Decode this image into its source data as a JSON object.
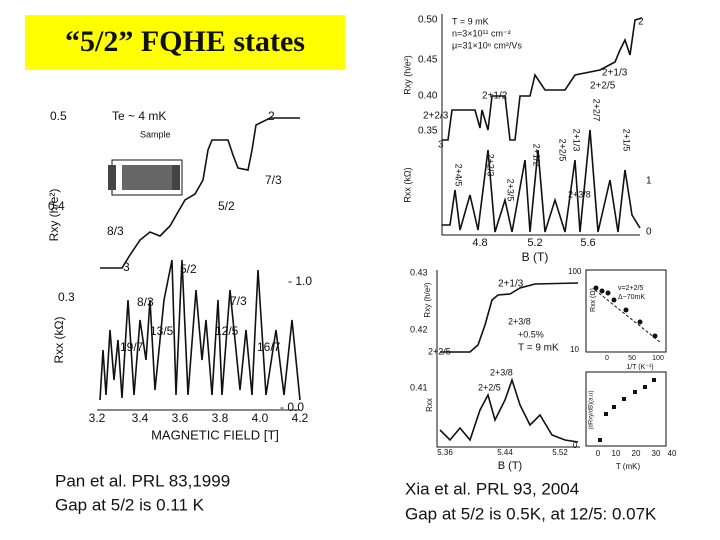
{
  "title": "“5/2” FQHE states",
  "left_figure": {
    "labels": [
      "0.5",
      "Te ~ 4 mK",
      "Sample",
      "2",
      "7/3",
      "5/2",
      "0.4",
      "Rxy (h/e²)",
      "8/3",
      "3",
      "5/2",
      "- 1.0",
      "0.3",
      "8/3",
      "7/3",
      "13/5",
      "12/5",
      "19/7",
      "16/7",
      "Rxx (kΩ)",
      "- 0.0",
      "3.2",
      "3.4",
      "3.6",
      "3.8",
      "4.0",
      "4.2",
      "MAGNETIC FIELD [T]"
    ]
  },
  "right_top_figure": {
    "labels": [
      "0.50",
      "0.45",
      "0.40",
      "0.35",
      "Rxy (h/e²)",
      "T = 9 mK",
      "n=3×10¹¹ cm⁻²",
      "μ=31×10⁶ cm²/Vs",
      "2",
      "2+1/3",
      "2+2/5",
      "2+1/2",
      "2+2/3",
      "3",
      "2+2/7",
      "2+1/5",
      "2+1/3",
      "2+2/5",
      "2+1/2",
      "2+3/8",
      "2+4/5",
      "2+2/3",
      "2+3/5",
      "1",
      "0",
      "Rxx (kΩ)",
      "4.8",
      "5.2",
      "5.6",
      "B (T)"
    ]
  },
  "right_bottom_figure": {
    "labels": [
      "0.43",
      "0.42",
      "0.41",
      "Rxy (h/e²)",
      "Rxx",
      "2+1/3",
      "2+3/8",
      "+0.5%",
      "2+2/5",
      "T = 9 mK",
      "2+3/8",
      "2+2/5",
      "5.36",
      "5.44",
      "5.52",
      "B (T)"
    ]
  },
  "inset_figure": {
    "labels": [
      "100",
      "10",
      "Rxx (Ω)",
      "ν=2+2/5",
      "Δ~70mK",
      "0",
      "50",
      "100",
      "1/T (K⁻¹)",
      "(dRxy/dB)(a.u)",
      "0",
      "0",
      "10",
      "20",
      "30",
      "40",
      "T (mK)"
    ]
  },
  "left_caption": [
    "Pan et al. PRL 83,1999",
    "Gap at 5/2 is 0.11 K"
  ],
  "right_caption": [
    "Xia et al. PRL 93, 2004",
    "Gap at 5/2 is 0.5K, at 12/5: 0.07K"
  ]
}
